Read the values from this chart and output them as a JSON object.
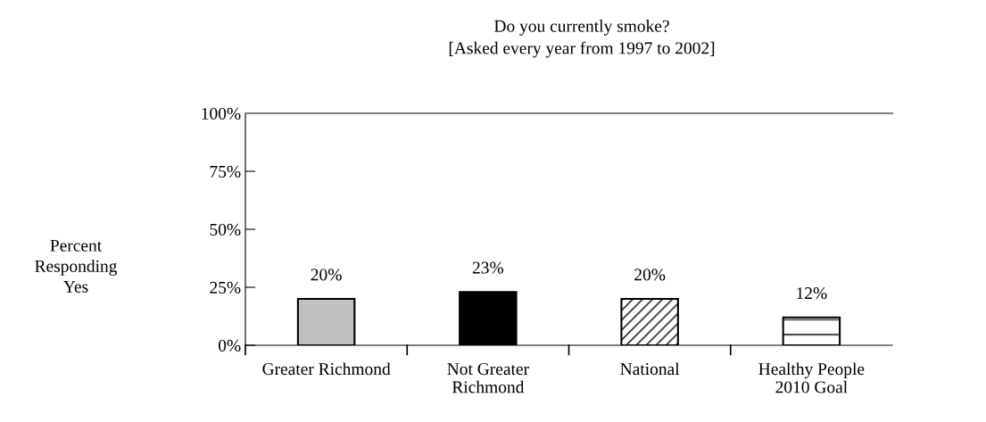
{
  "chart_data": {
    "type": "bar",
    "title": "Do you currently smoke?\n[Asked every year from 1997 to 2002]",
    "ylabel": "Percent\nResponding\nYes",
    "categories": [
      "Greater Richmond",
      "Not Greater\nRichmond",
      "National",
      "Healthy People\n2010 Goal"
    ],
    "values": [
      20,
      23,
      20,
      12
    ],
    "value_labels": [
      "20%",
      "23%",
      "20%",
      "12%"
    ],
    "colors": [
      "#c0c0c0",
      "#000000",
      "#000000",
      "#000000"
    ],
    "ylim": [
      0,
      100
    ],
    "yticks": [
      {
        "value": 0,
        "label": "0%"
      },
      {
        "value": 25,
        "label": "25%"
      },
      {
        "value": 50,
        "label": "50%"
      },
      {
        "value": 75,
        "label": "75%"
      },
      {
        "value": 100,
        "label": "100%"
      }
    ],
    "grid": false,
    "legend": false
  }
}
